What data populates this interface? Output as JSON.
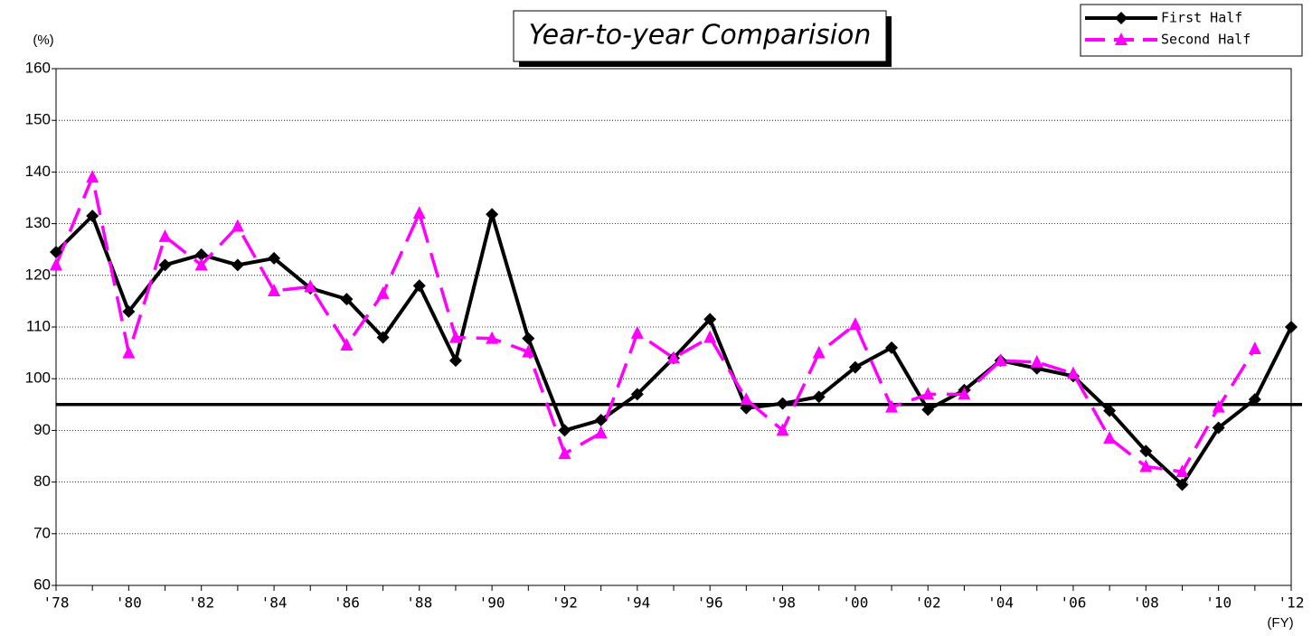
{
  "chart_data": {
    "type": "line",
    "title": "Year-to-year Comparision",
    "y_label": "(%)",
    "x_label": "(FY)",
    "categories": [
      "'78",
      null,
      "'80",
      null,
      "'82",
      null,
      "'84",
      null,
      "'86",
      null,
      "'88",
      null,
      "'90",
      null,
      "'92",
      null,
      "'94",
      null,
      "'96",
      null,
      "'98",
      null,
      "'00",
      null,
      "'02",
      null,
      "'04",
      null,
      "'06",
      null,
      "'08",
      null,
      "'10",
      null,
      "'12"
    ],
    "series": [
      {
        "name": "First Half",
        "color": "#000000",
        "marker": "diamond",
        "dashed": false,
        "values": [
          124.5,
          131.5,
          113,
          122,
          124,
          122,
          123.3,
          117.5,
          115.4,
          108,
          118,
          103.5,
          131.8,
          107.8,
          90,
          92,
          97,
          104,
          111.5,
          94.3,
          95.2,
          96.5,
          102.2,
          106,
          94,
          97.8,
          103.5,
          102,
          100.5,
          93.8,
          86,
          79.5,
          90.5,
          96,
          110
        ]
      },
      {
        "name": "Second Half",
        "color": "#ff00ff",
        "marker": "triangle",
        "dashed": true,
        "values": [
          122,
          139,
          105,
          127.5,
          122,
          129.5,
          117,
          117.8,
          106.5,
          116.5,
          132,
          108,
          107.8,
          105.2,
          85.5,
          89.5,
          108.8,
          104,
          108,
          96,
          90,
          105,
          110.5,
          94.5,
          97,
          97,
          103.5,
          103.2,
          101,
          88.5,
          83,
          82,
          94.5,
          105.8,
          null
        ]
      }
    ],
    "ylim": [
      60,
      160
    ],
    "yticks": [
      60,
      70,
      80,
      90,
      100,
      110,
      120,
      130,
      140,
      150,
      160
    ],
    "grid": true,
    "hline": 95,
    "legend": "top-right"
  }
}
